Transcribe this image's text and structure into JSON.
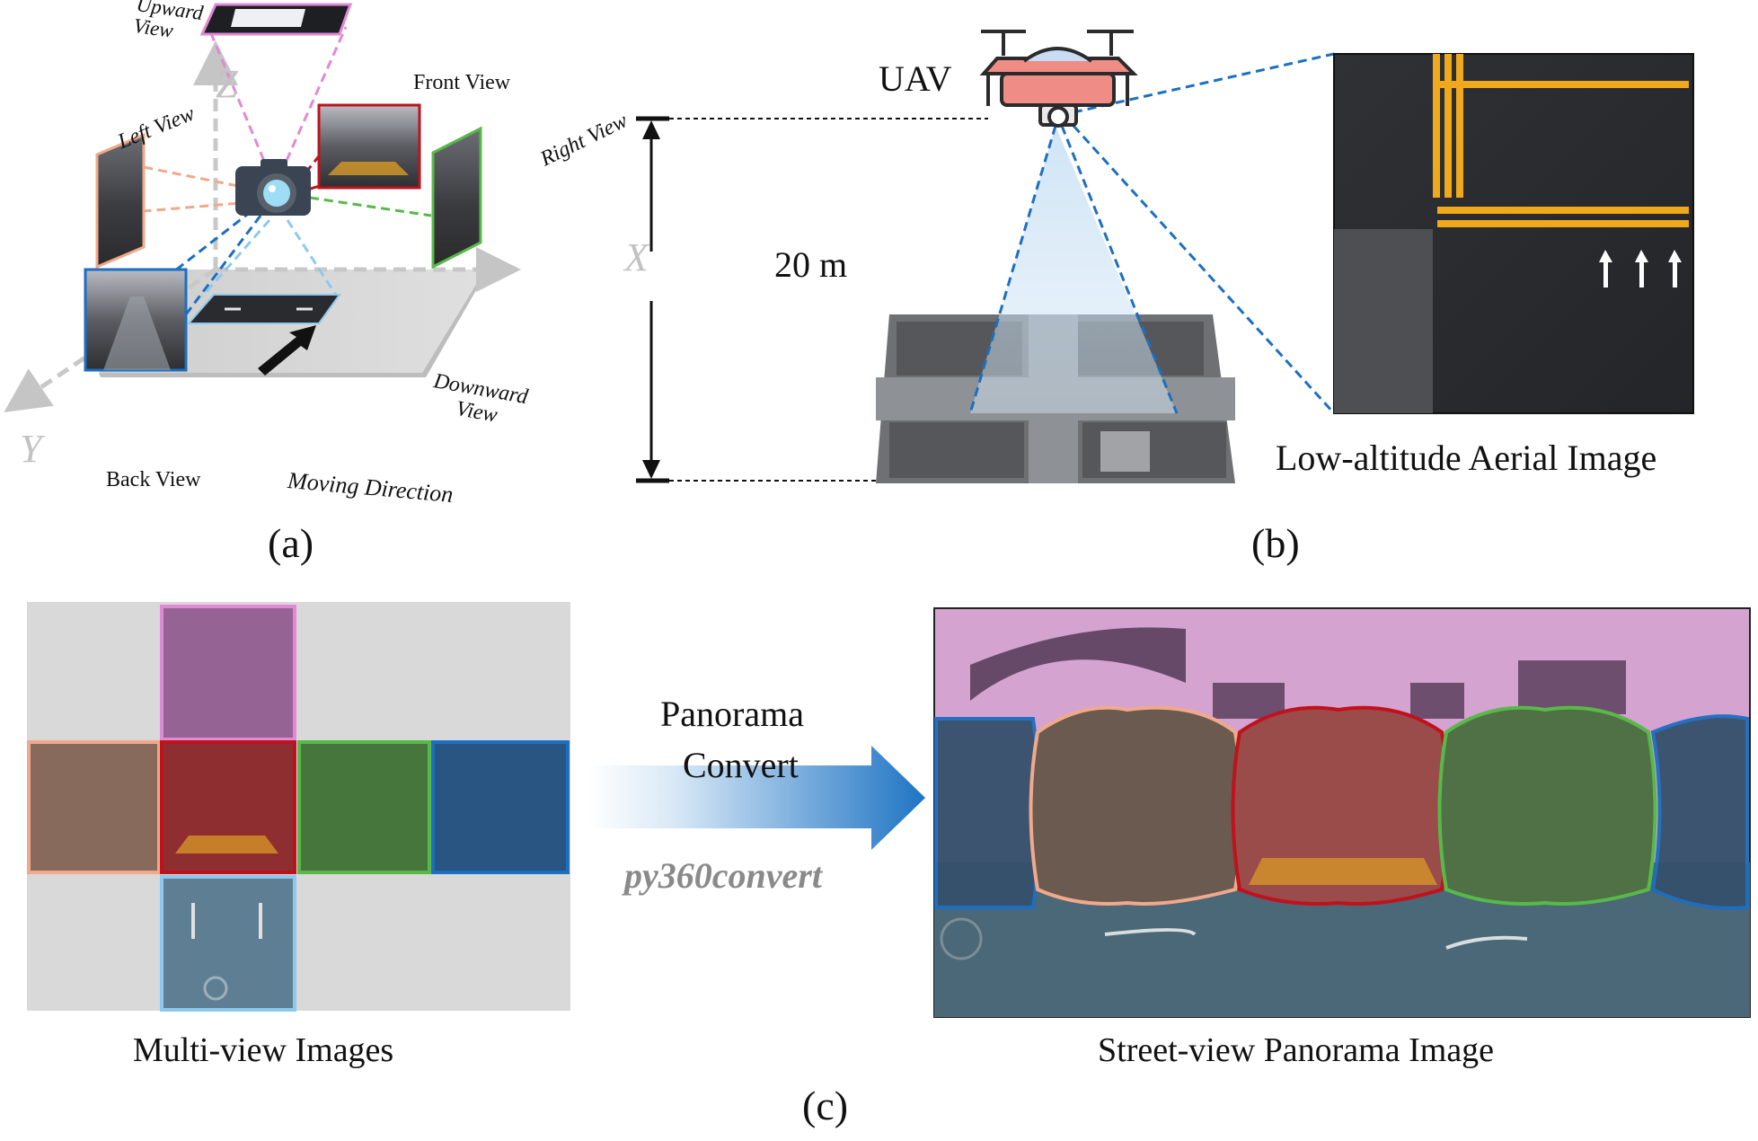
{
  "panel_a": {
    "label": "(a)",
    "axes": {
      "z": "Z",
      "x": "X",
      "y": "Y"
    },
    "views": {
      "upward": "Upward\nView",
      "front": "Front View",
      "left": "Left View",
      "right": "Right View",
      "back": "Back View",
      "downward": "Downward\nView"
    },
    "moving_direction": "Moving Direction",
    "colors": {
      "upward": "#e08ad6",
      "front": "#c0121c",
      "left": "#f0a98a",
      "right": "#58b948",
      "back": "#1c6fc1",
      "downward": "#8ec8ee"
    }
  },
  "panel_b": {
    "label": "(b)",
    "uav_label": "UAV",
    "altitude": "20 m",
    "aerial_caption": "Low-altitude Aerial Image",
    "beam_color": "#1c6fc1"
  },
  "panel_c": {
    "label": "(c)",
    "multiview_caption": "Multi-view Images",
    "convert_line1": "Panorama",
    "convert_line2": "Convert",
    "tool_name": "py360convert",
    "panorama_caption": "Street-view Panorama Image"
  }
}
